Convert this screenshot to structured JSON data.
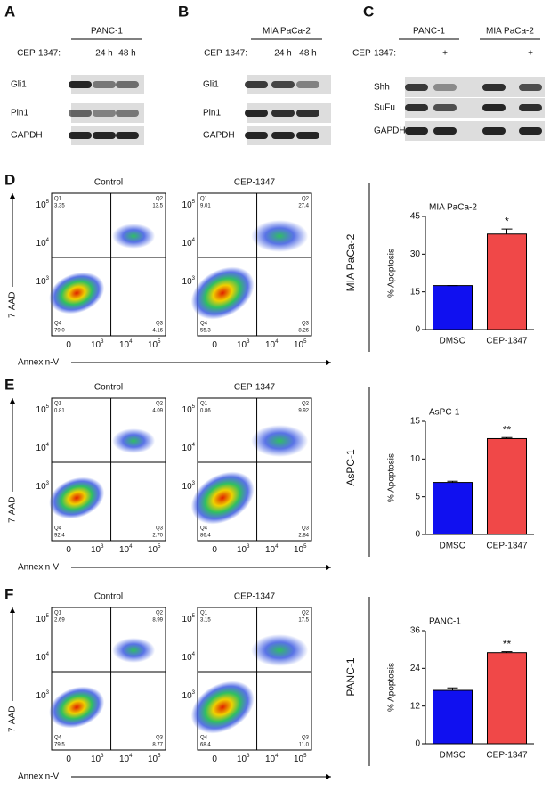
{
  "blots": [
    {
      "label": "A",
      "header": [
        "PANC-1"
      ],
      "treatment": "CEP-1347:",
      "lanes": [
        "-",
        "24 h",
        "48 h"
      ],
      "proteins": [
        "Gli1",
        "Pin1",
        "GAPDH"
      ]
    },
    {
      "label": "B",
      "header": [
        "MIA PaCa-2"
      ],
      "treatment": "CEP-1347:",
      "lanes": [
        "-",
        "24 h",
        "48 h"
      ],
      "proteins": [
        "Gli1",
        "Pin1",
        "GAPDH"
      ]
    },
    {
      "label": "C",
      "header": [
        "PANC-1",
        "MIA PaCa-2"
      ],
      "treatment": "CEP-1347:",
      "lanes": [
        "-",
        "+",
        "-",
        "+"
      ],
      "proteins": [
        "Shh",
        "SuFu",
        "GAPDH"
      ]
    }
  ],
  "flow_axis": {
    "x_ticks": [
      {
        "base": "0"
      },
      {
        "base": "10",
        "exp": "3"
      },
      {
        "base": "10",
        "exp": "4"
      },
      {
        "base": "10",
        "exp": "5"
      }
    ],
    "y_ticks": [
      {
        "base": "10",
        "exp": "3"
      },
      {
        "base": "10",
        "exp": "4"
      },
      {
        "base": "10",
        "exp": "5"
      }
    ]
  },
  "flow": [
    {
      "label": "D",
      "cell_line": "MIA PaCa-2",
      "y_label": "7-AAD",
      "x_label": "Annexin-V",
      "plots": [
        {
          "condition": "Control",
          "quadrants": [
            {
              "name": "Q1",
              "value": "3.35"
            },
            {
              "name": "Q2",
              "value": "13.5"
            },
            {
              "name": "Q3",
              "value": "4.16"
            },
            {
              "name": "Q4",
              "value": "79.0"
            }
          ]
        },
        {
          "condition": "CEP-1347",
          "quadrants": [
            {
              "name": "Q1",
              "value": "9.01"
            },
            {
              "name": "Q2",
              "value": "27.4"
            },
            {
              "name": "Q3",
              "value": "8.26"
            },
            {
              "name": "Q4",
              "value": "55.3"
            }
          ]
        }
      ]
    },
    {
      "label": "E",
      "cell_line": "AsPC-1",
      "y_label": "7-AAD",
      "x_label": "Annexin-V",
      "plots": [
        {
          "condition": "Control",
          "quadrants": [
            {
              "name": "Q1",
              "value": "0.81"
            },
            {
              "name": "Q2",
              "value": "4.09"
            },
            {
              "name": "Q3",
              "value": "2.70"
            },
            {
              "name": "Q4",
              "value": "92.4"
            }
          ]
        },
        {
          "condition": "CEP-1347",
          "quadrants": [
            {
              "name": "Q1",
              "value": "0.86"
            },
            {
              "name": "Q2",
              "value": "9.92"
            },
            {
              "name": "Q3",
              "value": "2.84"
            },
            {
              "name": "Q4",
              "value": "86.4"
            }
          ]
        }
      ]
    },
    {
      "label": "F",
      "cell_line": "PANC-1",
      "y_label": "7-AAD",
      "x_label": "Annexin-V",
      "plots": [
        {
          "condition": "Control",
          "quadrants": [
            {
              "name": "Q1",
              "value": "2.69"
            },
            {
              "name": "Q2",
              "value": "8.99"
            },
            {
              "name": "Q3",
              "value": "8.77"
            },
            {
              "name": "Q4",
              "value": "79.5"
            }
          ]
        },
        {
          "condition": "CEP-1347",
          "quadrants": [
            {
              "name": "Q1",
              "value": "3.15"
            },
            {
              "name": "Q2",
              "value": "17.5"
            },
            {
              "name": "Q3",
              "value": "11.0"
            },
            {
              "name": "Q4",
              "value": "68.4"
            }
          ]
        }
      ]
    }
  ],
  "chart_data": [
    {
      "type": "bar",
      "title": "MIA PaCa-2",
      "y_label": "% Apoptosis",
      "categories": [
        "DMSO",
        "CEP-1347"
      ],
      "values": [
        17.5,
        38
      ],
      "errors": [
        0,
        2
      ],
      "colors": [
        "#1010f0",
        "#f04848"
      ],
      "ylim": [
        0,
        45
      ],
      "yticks": [
        0,
        15,
        30,
        45
      ],
      "annotations": [
        {
          "text": "*",
          "category": "CEP-1347"
        }
      ]
    },
    {
      "type": "bar",
      "title": "AsPC-1",
      "y_label": "% Apoptosis",
      "categories": [
        "DMSO",
        "CEP-1347"
      ],
      "values": [
        6.9,
        12.7
      ],
      "errors": [
        0.15,
        0.15
      ],
      "colors": [
        "#1010f0",
        "#f04848"
      ],
      "ylim": [
        0,
        15
      ],
      "yticks": [
        0,
        5,
        10,
        15
      ],
      "annotations": [
        {
          "text": "**",
          "category": "CEP-1347"
        }
      ]
    },
    {
      "type": "bar",
      "title": "PANC-1",
      "y_label": "% Apoptosis",
      "categories": [
        "DMSO",
        "CEP-1347"
      ],
      "values": [
        17,
        29
      ],
      "errors": [
        0.8,
        0.3
      ],
      "colors": [
        "#1010f0",
        "#f04848"
      ],
      "ylim": [
        0,
        36
      ],
      "yticks": [
        0,
        12,
        24,
        36
      ],
      "annotations": [
        {
          "text": "**",
          "category": "CEP-1347"
        }
      ]
    }
  ]
}
